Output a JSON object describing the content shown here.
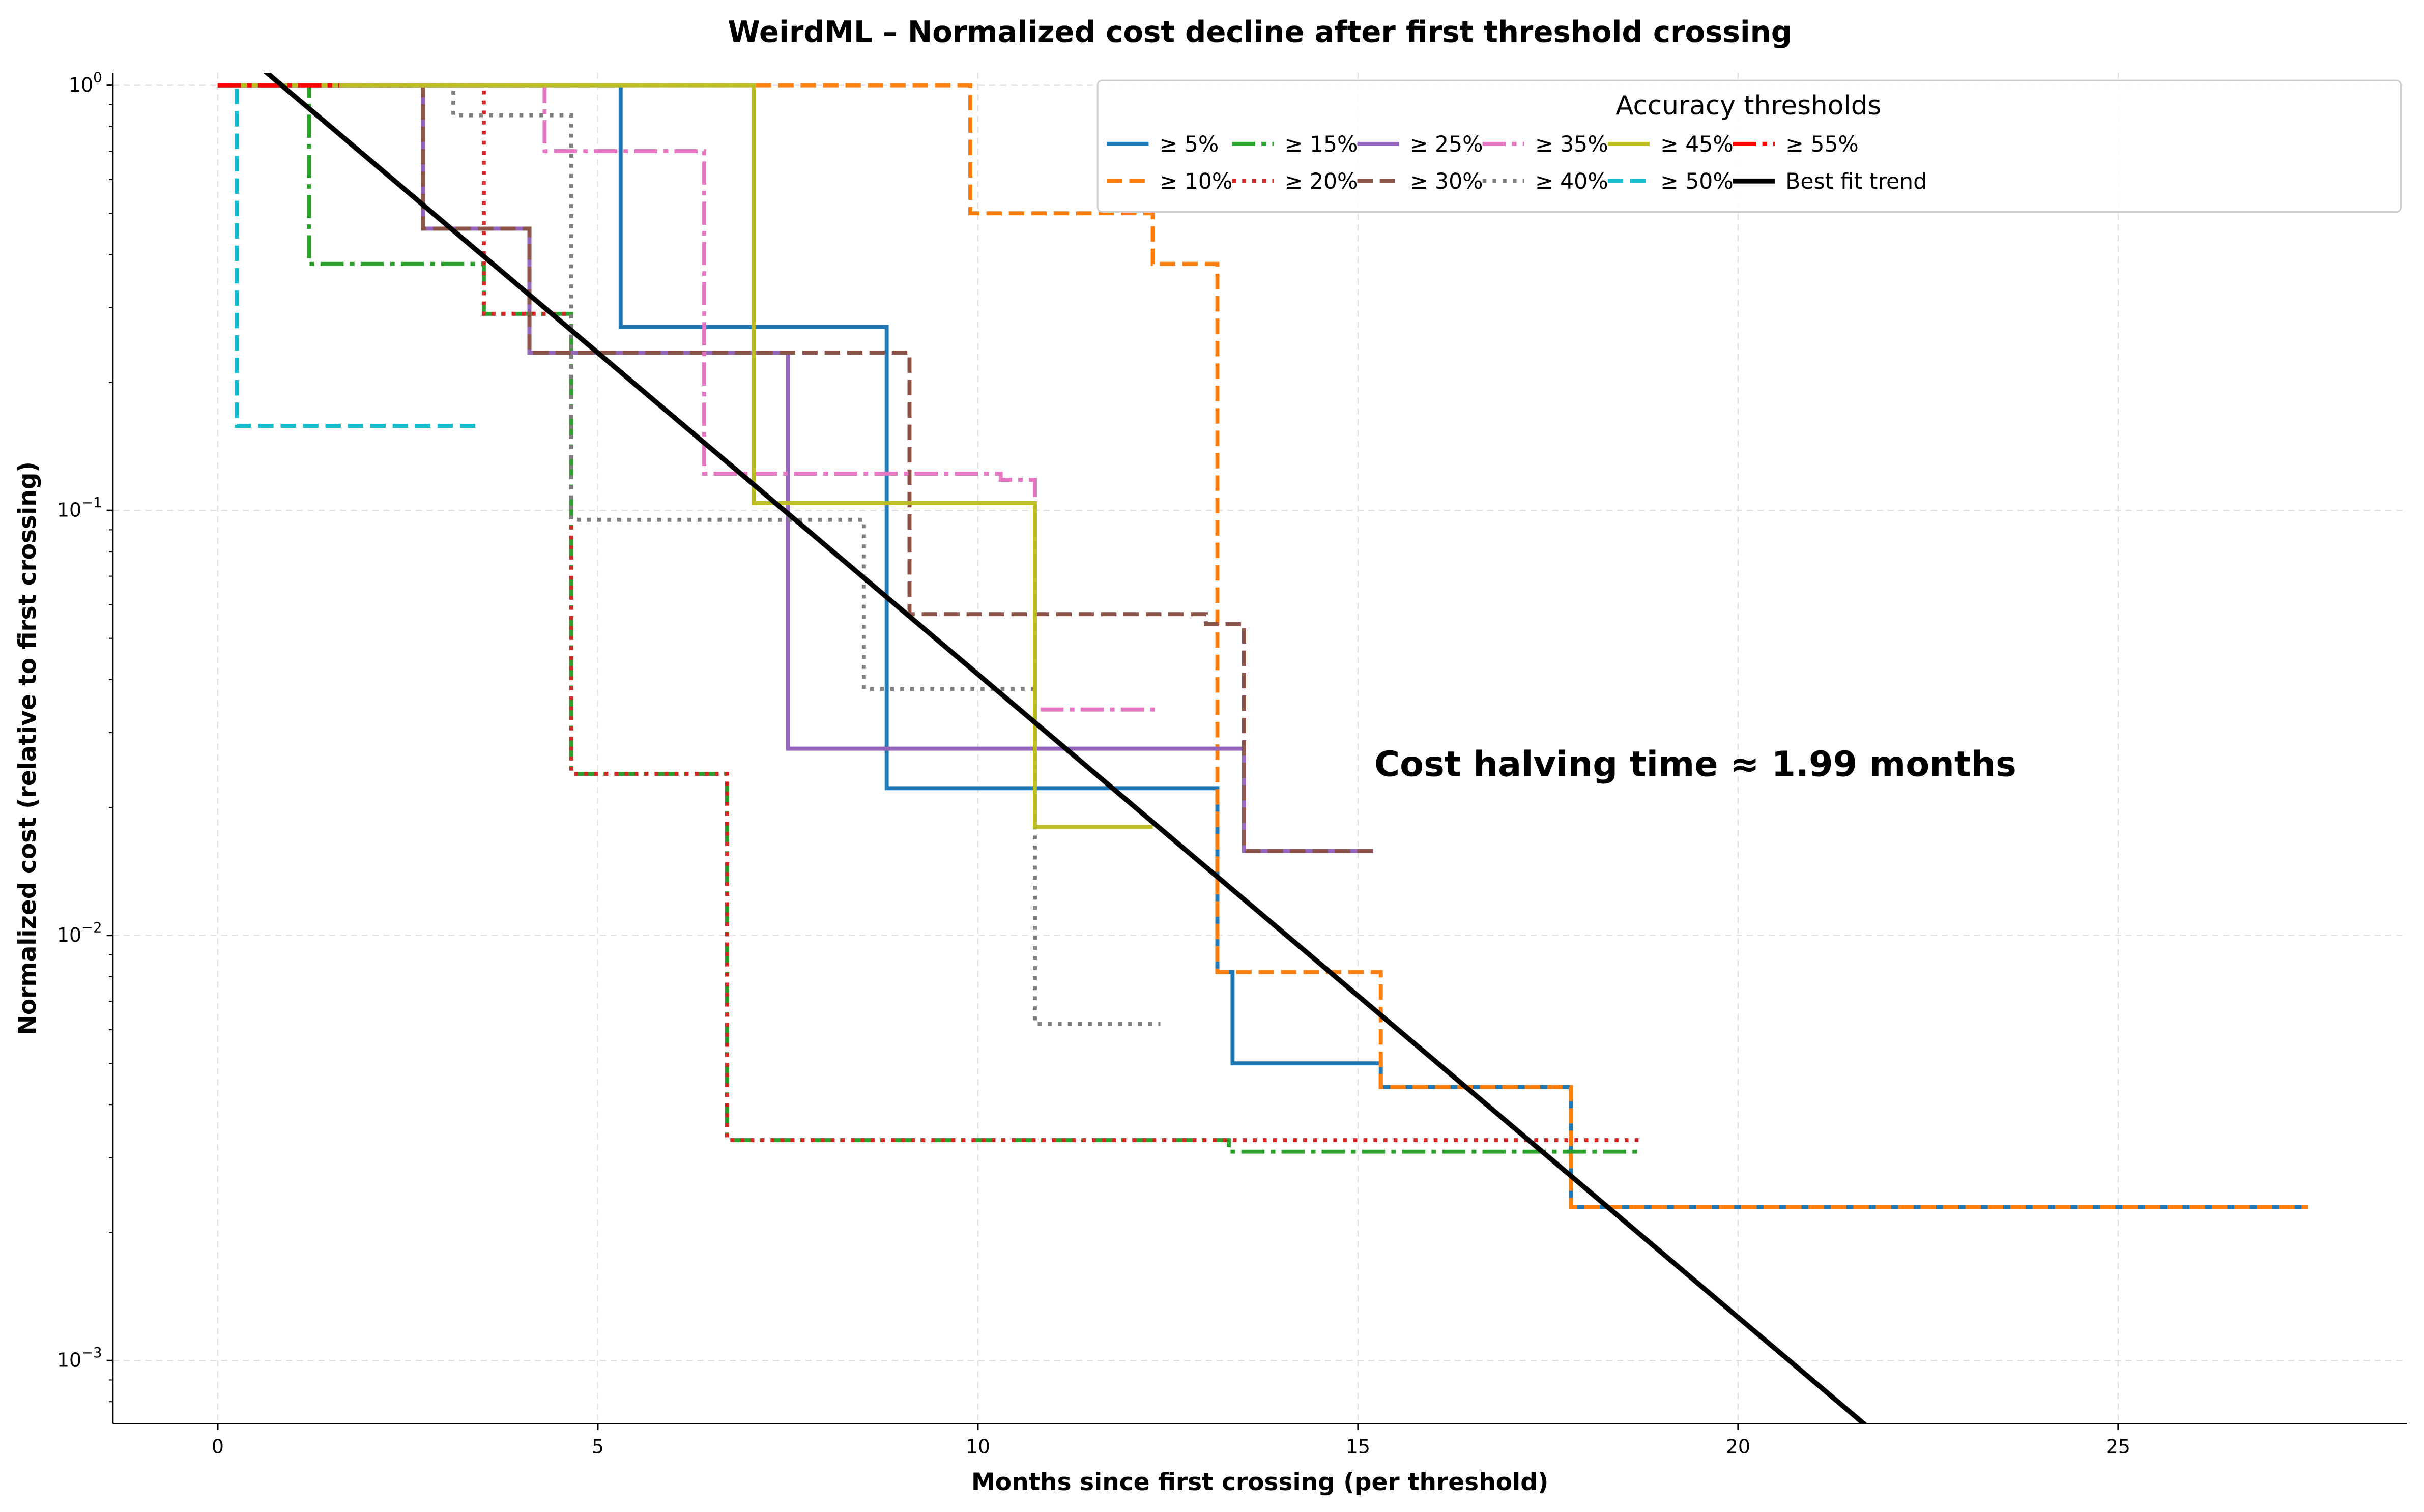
{
  "chart_data": {
    "type": "line",
    "step": true,
    "title": "WeirdML – Normalized cost decline after first threshold crossing",
    "xlabel": "Months since first crossing (per threshold)",
    "ylabel": "Normalized cost (relative to first crossing)",
    "xlim": [
      -1.38,
      28.8
    ],
    "ylim": [
      0.00071,
      1.07
    ],
    "yscale": "log",
    "grid": true,
    "xticks": [
      "0",
      "5",
      "10",
      "15",
      "20",
      "25"
    ],
    "xtick_values": [
      0,
      5,
      10,
      15,
      20,
      25
    ],
    "yticks": [
      {
        "value": 1,
        "base": "10",
        "exp": "0"
      },
      {
        "value": 0.1,
        "base": "10",
        "exp": "−1"
      },
      {
        "value": 0.01,
        "base": "10",
        "exp": "−2"
      },
      {
        "value": 0.001,
        "base": "10",
        "exp": "−3"
      }
    ],
    "legend": {
      "title": "Accuracy thresholds",
      "placement": "top-right",
      "columns": 6
    },
    "annotation": "Cost halving time ≈ 1.99 months",
    "series": [
      {
        "name": "≥ 5%",
        "color": "#1f77b4",
        "style": "solid",
        "x": [
          0,
          5.3,
          8.8,
          13.15,
          13.35,
          15.3,
          17.8,
          27.5
        ],
        "y": [
          1,
          0.27,
          0.0222,
          0.0082,
          0.005,
          0.0044,
          0.0023,
          0.0023
        ]
      },
      {
        "name": "≥ 10%",
        "color": "#ff7f0e",
        "style": "dashed",
        "x": [
          0,
          9.9,
          12.3,
          13.15,
          15.3,
          17.8,
          27.5
        ],
        "y": [
          1,
          0.5,
          0.38,
          0.0082,
          0.0044,
          0.0023,
          0.0023
        ]
      },
      {
        "name": "≥ 15%",
        "color": "#2ca02c",
        "style": "dashdot",
        "x": [
          0,
          1.2,
          3.5,
          4.65,
          6.7,
          13.3,
          18.7
        ],
        "y": [
          1,
          0.38,
          0.29,
          0.024,
          0.0033,
          0.0031,
          0.0031
        ]
      },
      {
        "name": "≥ 20%",
        "color": "#d62728",
        "style": "dotted",
        "x": [
          0,
          3.5,
          4.65,
          6.7,
          18.7
        ],
        "y": [
          1,
          0.29,
          0.024,
          0.0033,
          0.0033
        ]
      },
      {
        "name": "≥ 25%",
        "color": "#9467bd",
        "style": "solid",
        "x": [
          0,
          2.7,
          4.1,
          7.5,
          13.5,
          15.2
        ],
        "y": [
          1,
          0.46,
          0.235,
          0.0275,
          0.0158,
          0.0158
        ]
      },
      {
        "name": "≥ 30%",
        "color": "#8c564b",
        "style": "dashed",
        "x": [
          0,
          2.7,
          4.1,
          9.1,
          13.0,
          13.5,
          15.2
        ],
        "y": [
          1,
          0.46,
          0.235,
          0.057,
          0.054,
          0.0158,
          0.0158
        ]
      },
      {
        "name": "≥ 35%",
        "color": "#e377c2",
        "style": "dashdot",
        "x": [
          0,
          4.3,
          6.4,
          10.3,
          10.75,
          12.4
        ],
        "y": [
          1,
          0.7,
          0.122,
          0.118,
          0.034,
          0.034
        ]
      },
      {
        "name": "≥ 40%",
        "color": "#7f7f7f",
        "style": "dotted",
        "x": [
          0,
          3.1,
          4.65,
          8.5,
          10.75,
          12.4
        ],
        "y": [
          1,
          0.85,
          0.095,
          0.038,
          0.0062,
          0.0062
        ]
      },
      {
        "name": "≥ 45%",
        "color": "#bcbd22",
        "style": "solid",
        "x": [
          0,
          7.05,
          10.75,
          12.3
        ],
        "y": [
          1,
          0.104,
          0.018,
          0.018
        ]
      },
      {
        "name": "≥ 50%",
        "color": "#17becf",
        "style": "dashed",
        "x": [
          0,
          0.25,
          3.45
        ],
        "y": [
          1,
          0.158,
          0.158
        ]
      },
      {
        "name": "≥ 55%",
        "color": "#ff0000",
        "style": "dashdot",
        "x": [
          0,
          1.6
        ],
        "y": [
          1,
          1
        ]
      }
    ],
    "trend": {
      "name": "Best fit trend",
      "color": "#000000",
      "intercept": 1.34,
      "halving_months": 1.99,
      "x_range": [
        0,
        21.7
      ]
    }
  }
}
